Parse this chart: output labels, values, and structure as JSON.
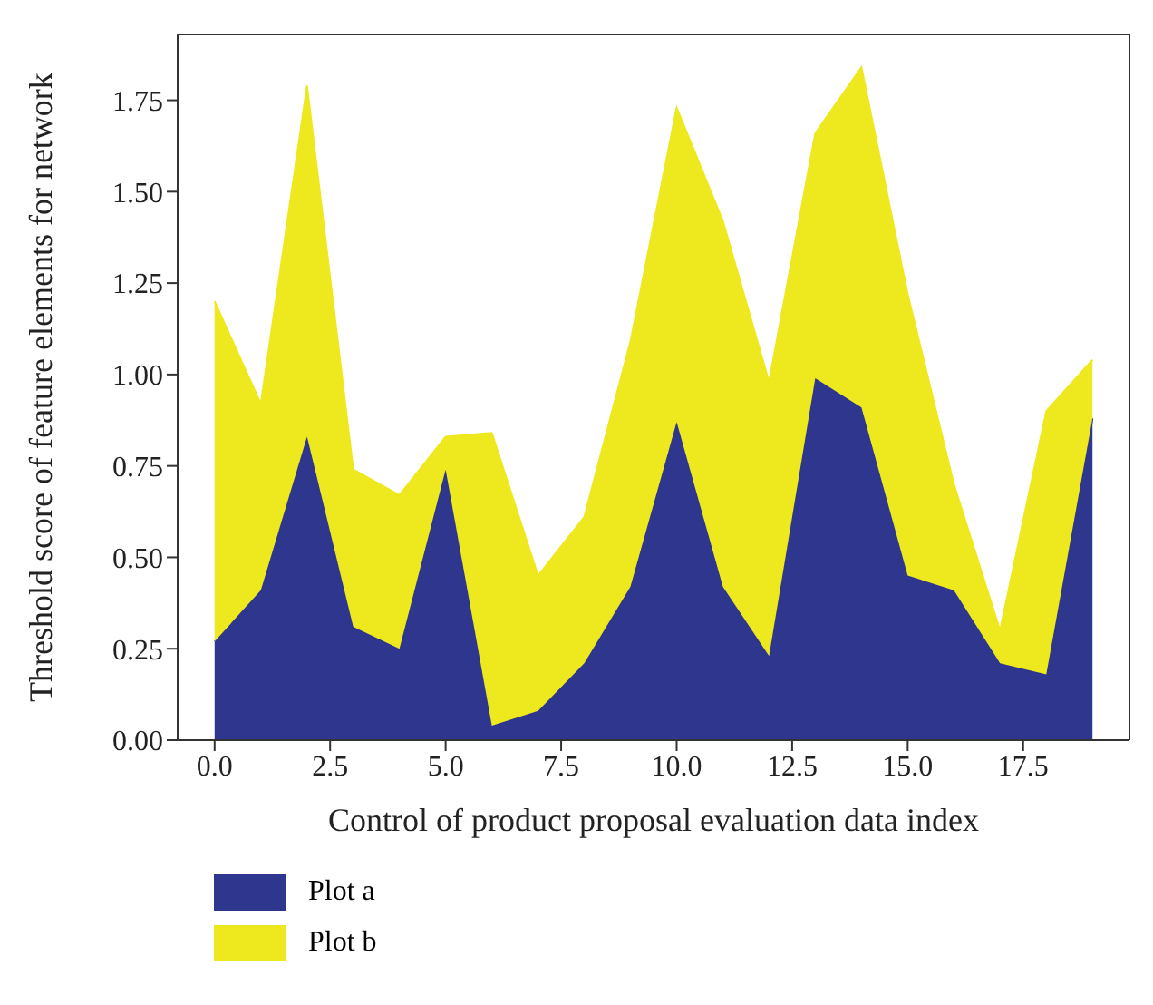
{
  "chart_data": {
    "type": "area",
    "stacked": true,
    "xlabel": "Control of product proposal evaluation data index",
    "ylabel": "Threshold score of feature elements for network",
    "x": [
      0,
      1,
      2,
      3,
      4,
      5,
      6,
      7,
      8,
      9,
      10,
      11,
      12,
      13,
      14,
      15,
      16,
      17,
      18,
      19
    ],
    "series": [
      {
        "name": "Plot a",
        "color": "#2e368e",
        "values": [
          0.27,
          0.41,
          0.83,
          0.31,
          0.25,
          0.74,
          0.04,
          0.08,
          0.21,
          0.42,
          0.87,
          0.42,
          0.23,
          0.99,
          0.91,
          0.45,
          0.41,
          0.21,
          0.18,
          0.88
        ]
      },
      {
        "name": "Plot b",
        "color": "#eee81e",
        "values": [
          0.93,
          0.51,
          0.96,
          0.43,
          0.42,
          0.09,
          0.8,
          0.37,
          0.4,
          0.67,
          0.86,
          1.0,
          0.75,
          0.67,
          0.93,
          0.77,
          0.29,
          0.09,
          0.72,
          0.16
        ]
      }
    ],
    "xlim": [
      -0.8,
      19.8
    ],
    "xticks": [
      {
        "value": 0,
        "label": "0.0"
      },
      {
        "value": 2.5,
        "label": "2.5"
      },
      {
        "value": 5,
        "label": "5.0"
      },
      {
        "value": 7.5,
        "label": "7.5"
      },
      {
        "value": 10,
        "label": "10.0"
      },
      {
        "value": 12.5,
        "label": "12.5"
      },
      {
        "value": 15,
        "label": "15.0"
      },
      {
        "value": 17.5,
        "label": "17.5"
      }
    ],
    "ylim": [
      0,
      1.93
    ],
    "yticks": [
      {
        "value": 0,
        "label": "0.00"
      },
      {
        "value": 0.25,
        "label": "0.25"
      },
      {
        "value": 0.5,
        "label": "0.50"
      },
      {
        "value": 0.75,
        "label": "0.75"
      },
      {
        "value": 1,
        "label": "1.00"
      },
      {
        "value": 1.25,
        "label": "1.25"
      },
      {
        "value": 1.5,
        "label": "1.50"
      },
      {
        "value": 1.75,
        "label": "1.75"
      }
    ],
    "grid": false,
    "legend": "bottom"
  }
}
